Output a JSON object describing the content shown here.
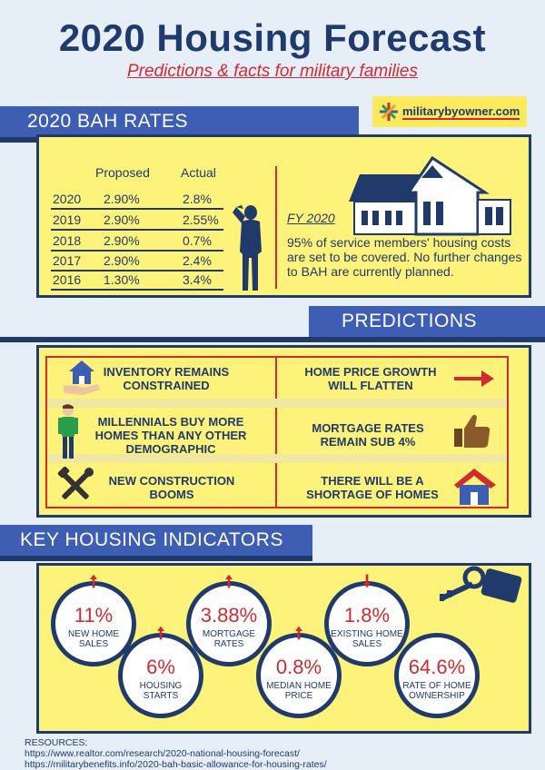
{
  "header": {
    "title": "2020 Housing Forecast",
    "subtitle": "Predictions & facts for military families"
  },
  "logo": {
    "text": "militarybyowner.com"
  },
  "bah": {
    "banner": "2020 BAH RATES",
    "col_proposed": "Proposed",
    "col_actual": "Actual",
    "rows": [
      {
        "year": "2020",
        "proposed": "2.90%",
        "actual": "2.8%"
      },
      {
        "year": "2019",
        "proposed": "2.90%",
        "actual": "2.55%"
      },
      {
        "year": "2018",
        "proposed": "2.90%",
        "actual": "0.7%"
      },
      {
        "year": "2017",
        "proposed": "2.90%",
        "actual": "2.4%"
      },
      {
        "year": "2016",
        "proposed": "1.30%",
        "actual": "3.4%"
      }
    ],
    "fy_label": "FY 2020",
    "fy_text": "95% of service members' housing costs are set to be covered. No further changes to BAH are currently planned."
  },
  "predictions": {
    "banner": "PREDICTIONS",
    "items": [
      {
        "text": "INVENTORY REMAINS CONSTRAINED",
        "icon": "house-in-hand-icon"
      },
      {
        "text": "HOME PRICE GROWTH WILL FLATTEN",
        "icon": "right-arrow-icon"
      },
      {
        "text": "MILLENNIALS BUY MORE HOMES THAN ANY OTHER DEMOGRAPHIC",
        "icon": "millennial-person-icon"
      },
      {
        "text": "MORTGAGE RATES REMAIN SUB 4%",
        "icon": "thumbs-up-icon"
      },
      {
        "text": "NEW CONSTRUCTION BOOMS",
        "icon": "tools-icon"
      },
      {
        "text": "THERE WILL BE A SHORTAGE OF HOMES",
        "icon": "house-icon"
      }
    ]
  },
  "indicators": {
    "banner": "KEY HOUSING INDICATORS",
    "items": [
      {
        "value": "11%",
        "label": "NEW HOME SALES",
        "direction": "up"
      },
      {
        "value": "6%",
        "label": "HOUSING STARTS",
        "direction": "up"
      },
      {
        "value": "3.88%",
        "label": "MORTGAGE RATES",
        "direction": "up"
      },
      {
        "value": "0.8%",
        "label": "MEDIAN HOME PRICE",
        "direction": "up"
      },
      {
        "value": "1.8%",
        "label": "EXISTING HOME SALES",
        "direction": "down"
      },
      {
        "value": "64.6%",
        "label": "RATE OF HOME OWNERSHIP",
        "direction": "none"
      }
    ]
  },
  "resources": {
    "heading": "RESOURCES:",
    "links": [
      "https://www.realtor.com/research/2020-national-housing-forecast/",
      "https://militarybenefits.info/2020-bah-basic-allowance-for-housing-rates/"
    ]
  },
  "colors": {
    "navy": "#1f3a6b",
    "blue": "#3e5eb3",
    "yellow": "#fdf27a",
    "red": "#d32a2f"
  }
}
